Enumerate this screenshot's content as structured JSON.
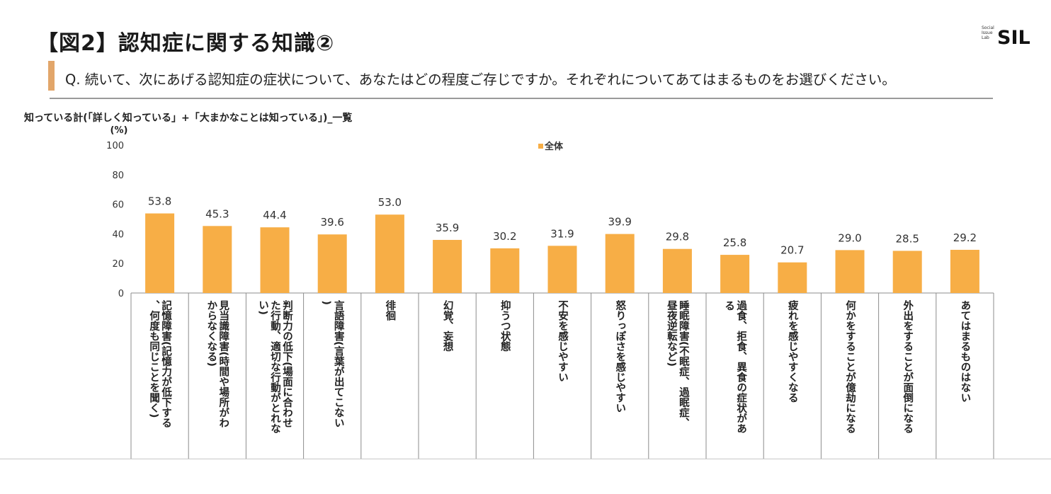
{
  "header": {
    "title": "【図2】認知症に関する知識②",
    "question": "Q. 続いて、次にあげる認知症の症状について、あなたはどの程度ご存じですか。それぞれについてあてはまるものをお選びください。",
    "subtitle": "知っている計(「詳しく知っている」+「大まかなことは知っている」)_一覧"
  },
  "logo": {
    "small_lines": [
      "Social",
      "Issue",
      "Lab"
    ],
    "text": "SIL"
  },
  "colors": {
    "bar": "#f7ae46",
    "accent_bar": "#e2a66a",
    "axis": "#8c8c8c"
  },
  "chart_data": {
    "type": "bar",
    "ylabel": "(%)",
    "ylim": [
      0,
      100
    ],
    "yticks": [
      0,
      20,
      40,
      60,
      80,
      100
    ],
    "grid": false,
    "legend_position": "top-center",
    "series": [
      {
        "name": "全体",
        "values": [
          53.8,
          45.3,
          44.4,
          39.6,
          53.0,
          35.9,
          30.2,
          31.9,
          39.9,
          29.8,
          25.8,
          20.7,
          29.0,
          28.5,
          29.2
        ],
        "labels": [
          "53.8",
          "45.3",
          "44.4",
          "39.6",
          "53.0",
          "35.9",
          "30.2",
          "31.9",
          "39.9",
          "29.8",
          "25.8",
          "20.7",
          "29.0",
          "28.5",
          "29.2"
        ]
      }
    ],
    "categories": [
      "記憶障害(記憶力が低下する、何度も同じことを聞く)",
      "見当識障害(時間や場所がわからなくなる)",
      "判断力の低下(場面に合わせた行動、適切な行動がとれない)",
      "言語障害(言葉が出てこない)",
      "徘徊",
      "幻覚、妄想",
      "抑うつ状態",
      "不安を感じやすい",
      "怒りっぽさを感じやすい",
      "睡眠障害(不眠症、過眠症、昼夜逆転など)",
      "過食、拒食、異食の症状がある",
      "疲れを感じやすくなる",
      "何かをすることが億劫になる",
      "外出をすることが面倒になる",
      "あてはまるものはない"
    ]
  }
}
